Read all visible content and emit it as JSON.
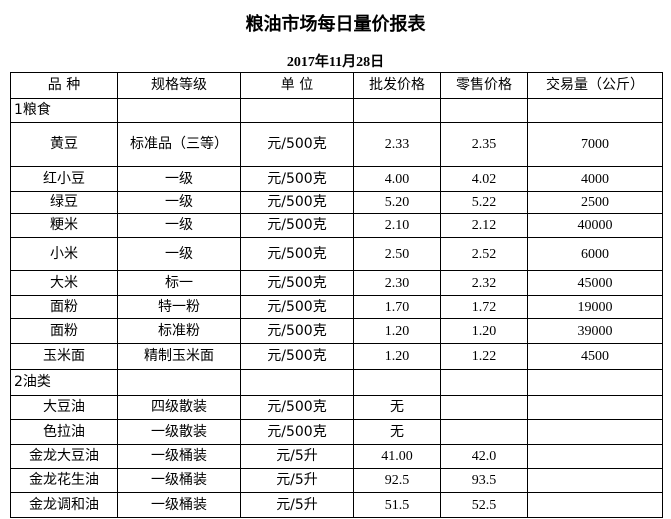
{
  "header": {
    "title": "粮油市场每日量价报表",
    "date": "2017年11月28日"
  },
  "table": {
    "columns": [
      "品 种",
      "规格等级",
      "单 位",
      "批发价格",
      "零售价格",
      "交易量（公斤）"
    ],
    "rows": [
      {
        "section": "1粮食"
      },
      {
        "name": "黄豆",
        "spec": "标准品（三等）",
        "unit": "元/500克",
        "wholesale": "2.33",
        "retail": "2.35",
        "volume": "7000"
      },
      {
        "name": "红小豆",
        "spec": "一级",
        "unit": "元/500克",
        "wholesale": "4.00",
        "retail": "4.02",
        "volume": "4000"
      },
      {
        "name": "绿豆",
        "spec": "一级",
        "unit": "元/500克",
        "wholesale": "5.20",
        "retail": "5.22",
        "volume": "2500"
      },
      {
        "name": "粳米",
        "spec": "一级",
        "unit": "元/500克",
        "wholesale": "2.10",
        "retail": "2.12",
        "volume": "40000"
      },
      {
        "name": "小米",
        "spec": "一级",
        "unit": "元/500克",
        "wholesale": "2.50",
        "retail": "2.52",
        "volume": "6000"
      },
      {
        "name": "大米",
        "spec": "标一",
        "unit": "元/500克",
        "wholesale": "2.30",
        "retail": "2.32",
        "volume": "45000"
      },
      {
        "name": "面粉",
        "spec": "特一粉",
        "unit": "元/500克",
        "wholesale": "1.70",
        "retail": "1.72",
        "volume": "19000"
      },
      {
        "name": "面粉",
        "spec": "标准粉",
        "unit": "元/500克",
        "wholesale": "1.20",
        "retail": "1.20",
        "volume": "39000"
      },
      {
        "name": "玉米面",
        "spec": "精制玉米面",
        "unit": "元/500克",
        "wholesale": "1.20",
        "retail": "1.22",
        "volume": "4500"
      },
      {
        "section": "2油类"
      },
      {
        "name": "大豆油",
        "spec": "四级散装",
        "unit": "元/500克",
        "wholesale": "无"
      },
      {
        "name": "色拉油",
        "spec": "一级散装",
        "unit": "元/500克",
        "wholesale": "无"
      },
      {
        "name": "金龙大豆油",
        "spec": "一级桶装",
        "unit": "元/5升",
        "wholesale": "41.00",
        "retail": "42.0"
      },
      {
        "name": "金龙花生油",
        "spec": "一级桶装",
        "unit": "元/5升",
        "wholesale": "92.5",
        "retail": "93.5"
      },
      {
        "name": "金龙调和油",
        "spec": "一级桶装",
        "unit": "元/5升",
        "wholesale": "51.5",
        "retail": "52.5"
      }
    ]
  }
}
